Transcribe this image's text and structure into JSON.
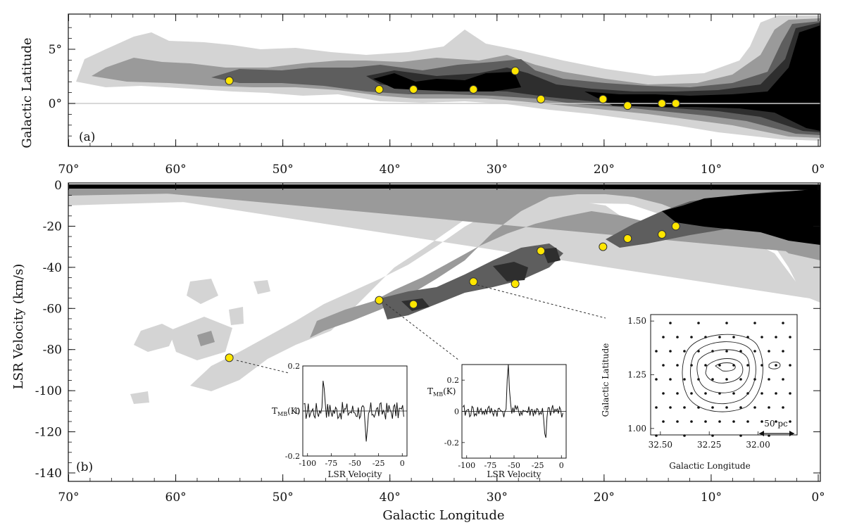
{
  "chart_data": [
    {
      "type": "contour_map",
      "panel_label": "(a)",
      "xlabel": "",
      "ylabel": "Galactic Latitude",
      "xlim": [
        71,
        0
      ],
      "ylim": [
        -4,
        8
      ],
      "x_ticks": [
        70,
        60,
        50,
        40,
        30,
        20,
        10,
        0
      ],
      "x_tick_labels": [
        "70°",
        "60°",
        "50°",
        "40°",
        "30°",
        "20°",
        "10°",
        "0°"
      ],
      "y_ticks": [
        5,
        0
      ],
      "y_tick_labels": [
        "5°",
        "0°"
      ],
      "points": [
        {
          "l": 55.0,
          "b": 2.1
        },
        {
          "l": 41.0,
          "b": 1.3
        },
        {
          "l": 37.8,
          "b": 1.3
        },
        {
          "l": 32.2,
          "b": 1.3
        },
        {
          "l": 28.3,
          "b": 3.0
        },
        {
          "l": 25.9,
          "b": 0.4
        },
        {
          "l": 20.1,
          "b": 0.4
        },
        {
          "l": 17.8,
          "b": -0.2
        },
        {
          "l": 14.6,
          "b": 0.0
        },
        {
          "l": 13.3,
          "b": 0.0
        }
      ],
      "point_color": "#ffe600"
    },
    {
      "type": "contour_map",
      "panel_label": "(b)",
      "xlabel": "Galactic Longitude",
      "ylabel": "LSR Velocity (km/s)",
      "xlim": [
        71,
        0
      ],
      "ylim": [
        -145,
        1
      ],
      "x_ticks": [
        70,
        60,
        50,
        40,
        30,
        20,
        10,
        0
      ],
      "x_tick_labels": [
        "70°",
        "60°",
        "50°",
        "40°",
        "30°",
        "20°",
        "10°",
        "0°"
      ],
      "y_ticks": [
        0,
        -20,
        -40,
        -60,
        -80,
        -100,
        -120,
        -140
      ],
      "y_tick_labels": [
        "0",
        "-20",
        "-40",
        "-60",
        "-80",
        "-100",
        "-120",
        "-140"
      ],
      "points": [
        {
          "l": 55.0,
          "v": -84
        },
        {
          "l": 41.0,
          "v": -56
        },
        {
          "l": 37.8,
          "v": -58
        },
        {
          "l": 32.2,
          "v": -47
        },
        {
          "l": 28.3,
          "v": -48
        },
        {
          "l": 25.9,
          "v": -32
        },
        {
          "l": 20.1,
          "v": -30
        },
        {
          "l": 17.8,
          "v": -26
        },
        {
          "l": 14.6,
          "v": -24
        },
        {
          "l": 13.3,
          "v": -20
        }
      ],
      "point_color": "#ffe600"
    },
    {
      "type": "line",
      "xlabel": "LSR Velocity",
      "ylabel": "T_MB(K)",
      "xlim": [
        -105,
        5
      ],
      "ylim": [
        -0.2,
        0.2
      ],
      "x_ticks": [
        -100,
        -75,
        -50,
        -25,
        0
      ],
      "x_tick_labels": [
        "-100",
        "-75",
        "-50",
        "-25",
        "0"
      ],
      "y_ticks": [
        0.2,
        0,
        -0.2
      ],
      "y_tick_labels": [
        "0.2",
        "0",
        "-0.2"
      ],
      "features": {
        "emission_peak": {
          "v": -83,
          "t": 0.13
        },
        "absorption": {
          "v": -38,
          "t": -0.16
        }
      }
    },
    {
      "type": "line",
      "xlabel": "LSR Velocity",
      "ylabel": "T_MB(K)",
      "xlim": [
        -105,
        5
      ],
      "ylim": [
        -0.3,
        0.3
      ],
      "x_ticks": [
        -100,
        -75,
        -50,
        -25,
        0
      ],
      "x_tick_labels": [
        "-100",
        "-75",
        "-50",
        "-25",
        "0"
      ],
      "y_ticks": [
        0.2,
        0,
        -0.2
      ],
      "y_tick_labels": [
        "0.2",
        "0",
        "-0.2"
      ],
      "features": {
        "emission_peak": {
          "v": -56,
          "t": 0.27
        },
        "absorption": {
          "v": -17,
          "t": -0.2
        }
      }
    },
    {
      "type": "scatter_contour",
      "xlabel": "Galactic Longitude",
      "ylabel": "Galactic Latitude",
      "xlim": [
        32.55,
        31.8
      ],
      "ylim": [
        0.97,
        1.53
      ],
      "x_ticks": [
        32.5,
        32.25,
        32.0
      ],
      "x_tick_labels": [
        "32.50",
        "32.25",
        "32.00"
      ],
      "y_ticks": [
        1.5,
        1.25,
        1.0
      ],
      "y_tick_labels": [
        "1.50",
        "1.25",
        "1.00"
      ],
      "scale_bar_label": "50 pc"
    }
  ],
  "labels": {
    "top_ylabel": "Galactic Latitude",
    "top_panel": "(a)",
    "bot_ylabel": "LSR Velocity (km/s)",
    "bot_panel": "(b)",
    "bot_xlabel": "Galactic Longitude",
    "inset1_ylabel": "T",
    "inset1_ysub": "MB",
    "inset1_yunit": "(K)",
    "inset1_xlabel": "LSR Velocity",
    "inset2_ylabel": "T",
    "inset2_ysub": "MB",
    "inset2_yunit": "(K)",
    "inset2_xlabel": "LSR Velocity",
    "inset3_ylabel": "Galactic Latitude",
    "inset3_xlabel": "Galactic Longitude",
    "inset3_scale": "50 pc"
  },
  "colors": {
    "light": "#d4d4d4",
    "mid": "#9a9a9a",
    "dark": "#5e5e5e",
    "darker": "#2e2e2e",
    "black": "#000000",
    "point": "#ffe600"
  }
}
